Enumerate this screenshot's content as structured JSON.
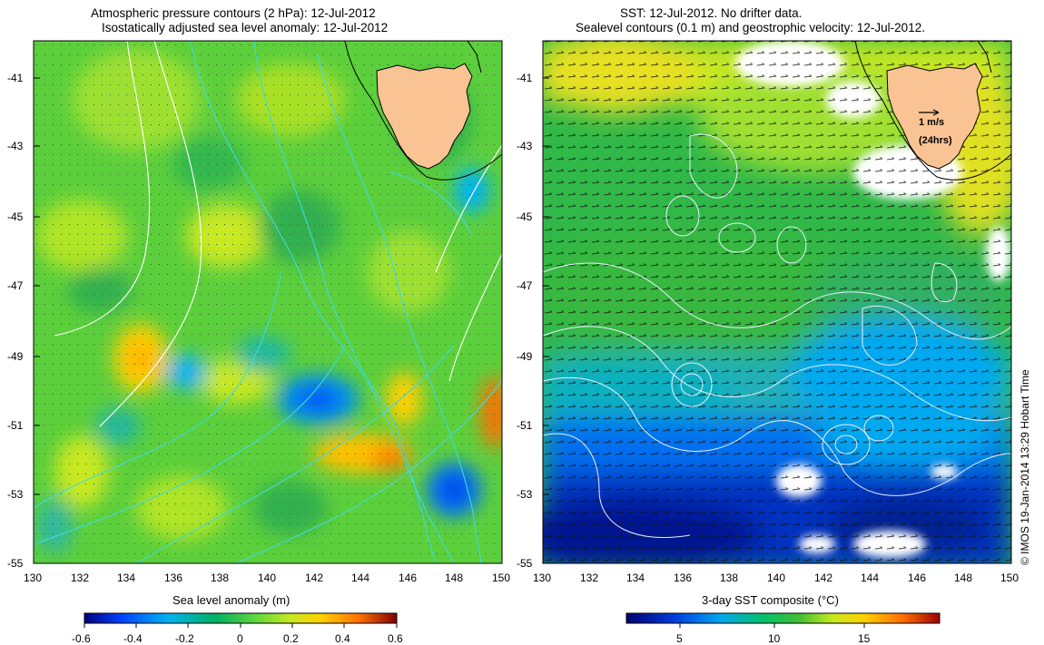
{
  "left_panel": {
    "title_line1": "Atmospheric pressure contours (2 hPa): 12-Jul-2012",
    "title_line2": "Isostatically adjusted sea level anomaly: 12-Jul-2012",
    "colorbar_label": "Sea level anomaly (m)",
    "colorbar_ticks": [
      "-0.6",
      "-0.4",
      "-0.2",
      "0",
      "0.2",
      "0.4",
      "0.6"
    ]
  },
  "right_panel": {
    "title_line1": "SST: 12-Jul-2012. No drifter data.",
    "title_line2": "Sealevel contours (0.1 m) and geostrophic velocity: 12-Jul-2012.",
    "colorbar_label": "3-day SST composite (°C)",
    "colorbar_ticks": [
      "5",
      "10",
      "15"
    ],
    "scale_label": "1 m/s",
    "scale_sublabel": "(24hrs)"
  },
  "axes": {
    "lat_ticks": [
      "-41",
      "-43",
      "-45",
      "-47",
      "-49",
      "-51",
      "-53",
      "-55"
    ],
    "lon_ticks": [
      "130",
      "132",
      "134",
      "136",
      "138",
      "140",
      "142",
      "144",
      "146",
      "148",
      "150"
    ]
  },
  "credit": "© IMOS 19-Jan-2014 13:29 Hobart Time",
  "colors": {
    "land": "#f9c393",
    "pressure_contour": "#ffffff",
    "sla_contour": "#40d8e0",
    "sst_contour": "#ffffff",
    "coast": "#000000"
  },
  "colormap_left": [
    "#000080",
    "#0044ff",
    "#00b4f0",
    "#00b060",
    "#40d040",
    "#a0e020",
    "#ffd000",
    "#ff7000",
    "#d02000",
    "#800000"
  ],
  "colormap_right": [
    "#000070",
    "#0040e0",
    "#00a8f0",
    "#00c070",
    "#20b830",
    "#60d030",
    "#c8e820",
    "#ffd000",
    "#ff7000",
    "#a00000"
  ]
}
